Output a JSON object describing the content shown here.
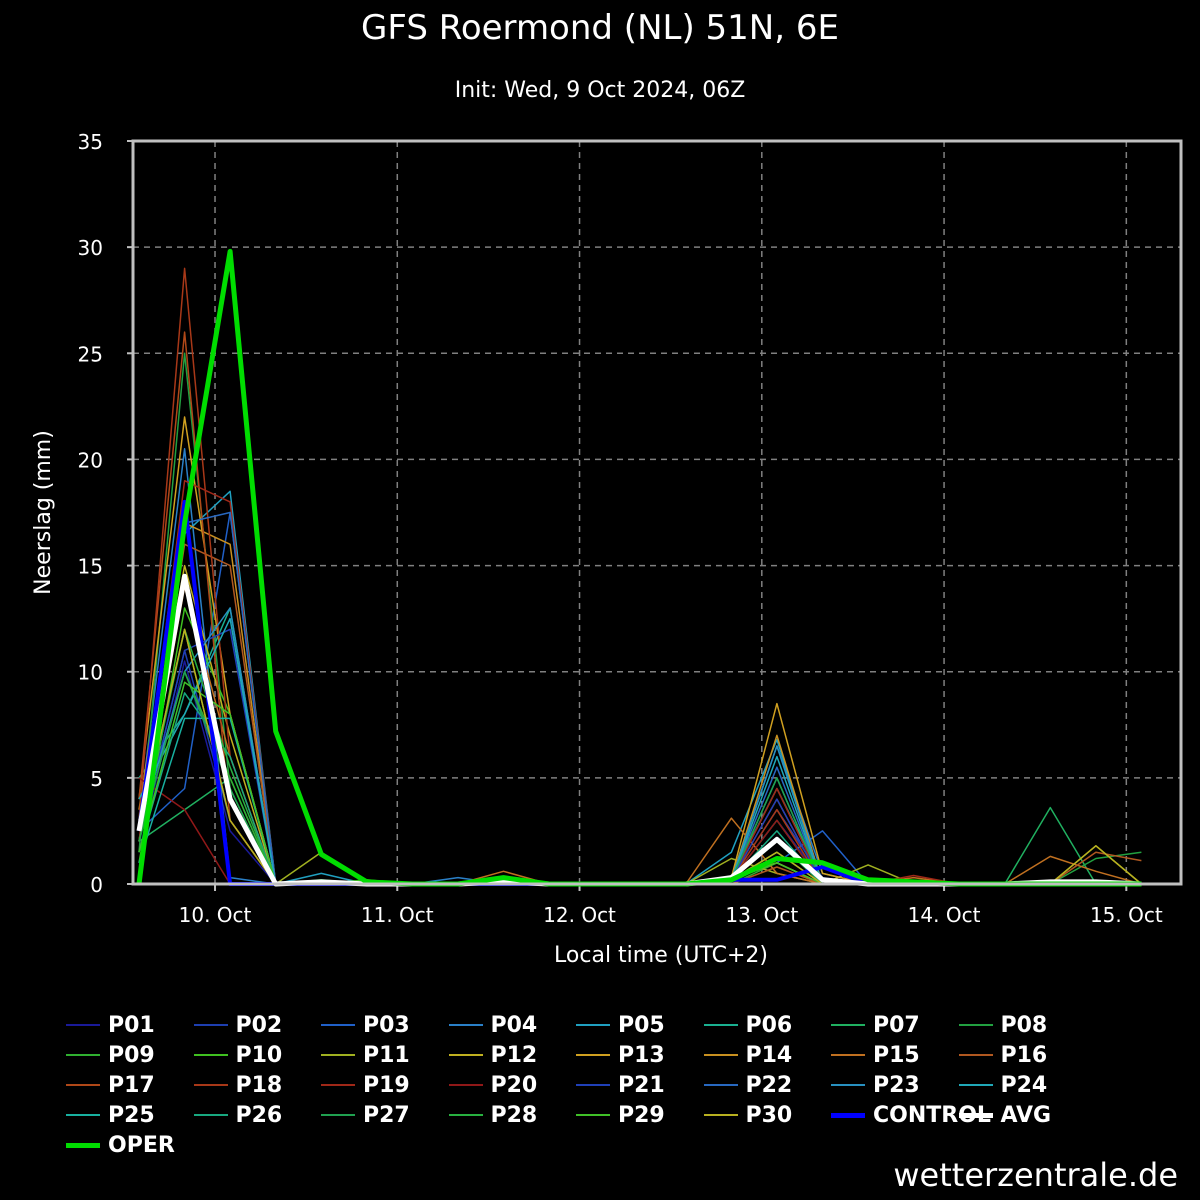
{
  "title": "GFS Roermond (NL) 51N, 6E",
  "subtitle": "Init: Wed, 9 Oct 2024, 06Z",
  "credit": "wetterzentrale.de",
  "colors": {
    "background": "#000000",
    "grid": "#808080",
    "axis": "#c0c0c0",
    "control": "#0000ff",
    "avg": "#ffffff",
    "oper": "#00dd00"
  },
  "chart_data": {
    "type": "line",
    "title": "GFS Roermond (NL) 51N, 6E",
    "subtitle": "Init: Wed, 9 Oct 2024, 06Z",
    "xlabel": "Local time (UTC+2)",
    "ylabel": "Neerslag (mm)",
    "xlim": [
      -0.45,
      5.3
    ],
    "ylim": [
      0,
      35
    ],
    "yticks": [
      0,
      5,
      10,
      15,
      20,
      25,
      30,
      35
    ],
    "xticks": [
      {
        "x": 0,
        "label": "10. Oct"
      },
      {
        "x": 1,
        "label": "11. Oct"
      },
      {
        "x": 2,
        "label": "12. Oct"
      },
      {
        "x": 3,
        "label": "13. Oct"
      },
      {
        "x": 4,
        "label": "14. Oct"
      },
      {
        "x": 5,
        "label": "15. Oct"
      }
    ],
    "x_unit": "days since 10 Oct 00:00 local",
    "x": [
      -0.417,
      -0.167,
      0.083,
      0.333,
      0.583,
      0.833,
      1.083,
      1.333,
      1.583,
      1.833,
      2.083,
      2.333,
      2.583,
      2.833,
      3.083,
      3.333,
      3.583,
      3.833,
      4.083,
      4.333,
      4.583,
      4.833,
      5.083
    ],
    "grid": true,
    "legend_placement": "bottom",
    "series": [
      {
        "name": "P01",
        "color": "#1a1a99",
        "width": 1.5,
        "values": [
          1.5,
          10.5,
          2.5,
          0.0,
          0.1,
          0.0,
          0.0,
          0.0,
          0.0,
          0.0,
          0.0,
          0.0,
          0.0,
          0.2,
          3.0,
          0.2,
          0.0,
          0.0,
          0.0,
          0.0,
          0.0,
          0.0,
          0.0
        ]
      },
      {
        "name": "P02",
        "color": "#1e3fb0",
        "width": 1.5,
        "values": [
          2.0,
          11.0,
          3.0,
          0.0,
          0.0,
          0.0,
          0.0,
          0.0,
          0.0,
          0.0,
          0.0,
          0.0,
          0.0,
          0.2,
          3.5,
          0.3,
          0.0,
          0.0,
          0.0,
          0.0,
          0.0,
          0.0,
          0.0
        ]
      },
      {
        "name": "P03",
        "color": "#2060c8",
        "width": 1.5,
        "values": [
          2.5,
          4.5,
          17.5,
          0.0,
          0.0,
          0.0,
          0.0,
          0.0,
          0.0,
          0.0,
          0.0,
          0.0,
          0.0,
          0.2,
          1.0,
          2.5,
          0.0,
          0.0,
          0.0,
          0.0,
          0.0,
          0.0,
          0.0
        ]
      },
      {
        "name": "P04",
        "color": "#2a80c8",
        "width": 1.5,
        "values": [
          3.0,
          20.5,
          0.3,
          0.0,
          0.1,
          0.0,
          0.0,
          0.3,
          0.0,
          0.0,
          0.0,
          0.0,
          0.0,
          0.3,
          6.5,
          0.5,
          0.0,
          0.0,
          0.0,
          0.0,
          0.0,
          0.0,
          0.0
        ]
      },
      {
        "name": "P05",
        "color": "#20a0c0",
        "width": 1.5,
        "values": [
          2.0,
          16.5,
          18.5,
          0.0,
          0.5,
          0.0,
          0.0,
          0.0,
          0.0,
          0.0,
          0.0,
          0.0,
          0.0,
          1.5,
          6.8,
          0.0,
          0.0,
          0.0,
          0.0,
          0.0,
          0.1,
          0.1,
          0.0
        ]
      },
      {
        "name": "P06",
        "color": "#1ab090",
        "width": 1.5,
        "values": [
          5.0,
          8.0,
          13.0,
          0.0,
          0.0,
          0.0,
          0.0,
          0.0,
          0.0,
          0.0,
          0.0,
          0.0,
          0.0,
          0.3,
          4.5,
          0.2,
          0.0,
          0.0,
          0.0,
          0.0,
          0.0,
          0.0,
          0.0
        ]
      },
      {
        "name": "P07",
        "color": "#20b060",
        "width": 1.5,
        "values": [
          2.0,
          3.5,
          5.0,
          0.0,
          0.0,
          0.0,
          0.0,
          0.0,
          0.0,
          0.0,
          0.0,
          0.0,
          0.0,
          0.2,
          2.0,
          0.0,
          0.0,
          0.0,
          0.0,
          0.0,
          3.6,
          0.0,
          0.0
        ]
      },
      {
        "name": "P08",
        "color": "#22a040",
        "width": 1.5,
        "values": [
          1.5,
          25.0,
          4.5,
          0.0,
          0.2,
          0.0,
          0.0,
          0.0,
          0.0,
          0.0,
          0.0,
          0.0,
          0.0,
          0.2,
          3.0,
          0.0,
          0.0,
          0.0,
          0.0,
          0.0,
          0.0,
          1.2,
          1.5
        ]
      },
      {
        "name": "P09",
        "color": "#30b030",
        "width": 1.5,
        "values": [
          2.0,
          10.0,
          5.0,
          0.0,
          0.0,
          0.0,
          0.0,
          0.0,
          0.0,
          0.0,
          0.0,
          0.0,
          0.0,
          0.0,
          1.0,
          0.0,
          0.0,
          0.0,
          0.0,
          0.0,
          0.0,
          0.0,
          0.0
        ]
      },
      {
        "name": "P10",
        "color": "#40c020",
        "width": 1.5,
        "values": [
          1.0,
          13.0,
          8.0,
          0.0,
          0.0,
          0.2,
          0.0,
          0.0,
          0.0,
          0.0,
          0.0,
          0.0,
          0.0,
          0.3,
          1.0,
          0.0,
          0.0,
          0.0,
          0.0,
          0.0,
          0.0,
          0.0,
          0.0
        ]
      },
      {
        "name": "P11",
        "color": "#a0b020",
        "width": 1.5,
        "values": [
          2.5,
          12.0,
          3.0,
          0.0,
          1.5,
          0.0,
          0.0,
          0.0,
          0.0,
          0.0,
          0.0,
          0.0,
          0.0,
          1.2,
          0.5,
          0.0,
          0.9,
          0.0,
          0.0,
          0.0,
          0.0,
          1.8,
          0.0
        ]
      },
      {
        "name": "P12",
        "color": "#c0b020",
        "width": 1.5,
        "values": [
          3.0,
          15.0,
          7.0,
          0.0,
          0.0,
          0.0,
          0.0,
          0.0,
          0.0,
          0.0,
          0.0,
          0.0,
          0.0,
          0.3,
          1.0,
          0.0,
          0.0,
          0.0,
          0.0,
          0.0,
          0.0,
          0.0,
          0.0
        ]
      },
      {
        "name": "P13",
        "color": "#d0a020",
        "width": 1.5,
        "values": [
          4.0,
          22.0,
          8.0,
          0.0,
          0.0,
          0.0,
          0.0,
          0.0,
          0.0,
          0.0,
          0.0,
          0.0,
          0.0,
          0.3,
          8.5,
          0.5,
          0.0,
          0.0,
          0.0,
          0.0,
          0.0,
          0.0,
          0.0
        ]
      },
      {
        "name": "P14",
        "color": "#c89020",
        "width": 1.5,
        "values": [
          3.5,
          17.0,
          16.0,
          0.0,
          0.0,
          0.0,
          0.0,
          0.0,
          0.0,
          0.0,
          0.0,
          0.0,
          0.0,
          0.2,
          7.0,
          0.0,
          0.0,
          0.0,
          0.0,
          0.0,
          0.0,
          0.0,
          0.0
        ]
      },
      {
        "name": "P15",
        "color": "#c07020",
        "width": 1.5,
        "values": [
          2.0,
          14.0,
          6.0,
          0.0,
          0.0,
          0.0,
          0.0,
          0.0,
          0.6,
          0.0,
          0.0,
          0.0,
          0.0,
          3.1,
          0.5,
          0.0,
          0.0,
          0.3,
          0.0,
          0.0,
          1.3,
          0.6,
          0.0
        ]
      },
      {
        "name": "P16",
        "color": "#b05820",
        "width": 1.5,
        "values": [
          2.0,
          16.0,
          15.0,
          0.0,
          0.0,
          0.0,
          0.0,
          0.0,
          0.0,
          0.0,
          0.0,
          0.0,
          0.0,
          0.0,
          0.8,
          0.0,
          0.0,
          0.0,
          0.0,
          0.0,
          0.0,
          1.5,
          1.1
        ]
      },
      {
        "name": "P17",
        "color": "#b04818",
        "width": 1.5,
        "values": [
          4.0,
          26.0,
          3.0,
          0.0,
          0.0,
          0.0,
          0.0,
          0.0,
          0.0,
          0.0,
          0.0,
          0.0,
          0.0,
          0.2,
          4.0,
          0.0,
          0.0,
          0.0,
          0.0,
          0.0,
          0.0,
          0.0,
          0.0
        ]
      },
      {
        "name": "P18",
        "color": "#a83818",
        "width": 1.5,
        "values": [
          3.0,
          29.0,
          6.0,
          0.0,
          0.0,
          0.0,
          0.0,
          0.0,
          0.0,
          0.0,
          0.0,
          0.0,
          0.0,
          0.2,
          3.5,
          0.0,
          0.0,
          0.0,
          0.0,
          0.0,
          0.0,
          0.0,
          0.0
        ]
      },
      {
        "name": "P19",
        "color": "#a02818",
        "width": 1.5,
        "values": [
          2.0,
          19.0,
          18.0,
          0.0,
          0.0,
          0.0,
          0.0,
          0.0,
          0.0,
          0.0,
          0.0,
          0.0,
          0.0,
          0.2,
          4.5,
          0.0,
          0.0,
          0.4,
          0.0,
          0.0,
          0.0,
          0.0,
          0.0
        ]
      },
      {
        "name": "P20",
        "color": "#901818",
        "width": 1.5,
        "values": [
          5.0,
          3.5,
          0.0,
          0.0,
          0.0,
          0.0,
          0.0,
          0.0,
          0.0,
          0.0,
          0.0,
          0.0,
          0.0,
          0.2,
          3.0,
          0.0,
          0.0,
          0.0,
          0.0,
          0.0,
          0.0,
          0.0,
          0.0
        ]
      },
      {
        "name": "P21",
        "color": "#2040b8",
        "width": 1.5,
        "values": [
          2.0,
          11.0,
          12.0,
          0.0,
          0.0,
          0.0,
          0.0,
          0.0,
          0.0,
          0.0,
          0.0,
          0.0,
          0.0,
          0.2,
          4.0,
          0.0,
          0.0,
          0.0,
          0.0,
          0.0,
          0.0,
          0.0,
          0.0
        ]
      },
      {
        "name": "P22",
        "color": "#2868c0",
        "width": 1.5,
        "values": [
          3.0,
          17.0,
          17.5,
          0.0,
          0.0,
          0.0,
          0.0,
          0.0,
          0.0,
          0.0,
          0.0,
          0.0,
          0.0,
          0.2,
          5.5,
          0.0,
          0.0,
          0.0,
          0.0,
          0.0,
          0.0,
          0.0,
          0.0
        ]
      },
      {
        "name": "P23",
        "color": "#2890c0",
        "width": 1.5,
        "values": [
          2.5,
          10.0,
          13.0,
          0.0,
          0.0,
          0.0,
          0.0,
          0.0,
          0.0,
          0.0,
          0.0,
          0.0,
          0.0,
          0.2,
          6.5,
          0.0,
          0.0,
          0.0,
          0.0,
          0.0,
          0.0,
          0.0,
          0.0
        ]
      },
      {
        "name": "P24",
        "color": "#20a8b8",
        "width": 1.5,
        "values": [
          4.0,
          8.0,
          12.5,
          0.0,
          0.0,
          0.0,
          0.0,
          0.0,
          0.0,
          0.0,
          0.0,
          0.0,
          0.0,
          0.2,
          6.0,
          0.0,
          0.0,
          0.0,
          0.0,
          0.0,
          0.0,
          0.0,
          0.0
        ]
      },
      {
        "name": "P25",
        "color": "#18b0a0",
        "width": 1.5,
        "values": [
          1.0,
          7.8,
          7.8,
          0.0,
          0.0,
          0.0,
          0.0,
          0.0,
          0.0,
          0.0,
          0.0,
          0.0,
          0.0,
          0.2,
          5.0,
          0.0,
          0.0,
          0.0,
          0.0,
          0.0,
          0.0,
          0.0,
          0.0
        ]
      },
      {
        "name": "P26",
        "color": "#18a880",
        "width": 1.5,
        "values": [
          1.5,
          9.0,
          6.0,
          0.0,
          0.0,
          0.0,
          0.0,
          0.0,
          0.0,
          0.0,
          0.0,
          0.0,
          0.0,
          0.2,
          2.5,
          0.0,
          0.0,
          0.0,
          0.0,
          0.0,
          0.0,
          0.0,
          0.0
        ]
      },
      {
        "name": "P27",
        "color": "#20a050",
        "width": 1.5,
        "values": [
          2.0,
          10.0,
          4.5,
          0.0,
          0.0,
          0.0,
          0.0,
          0.0,
          0.0,
          0.0,
          0.0,
          0.0,
          0.0,
          0.2,
          5.0,
          0.0,
          0.0,
          0.0,
          0.0,
          0.0,
          0.0,
          0.0,
          0.0
        ]
      },
      {
        "name": "P28",
        "color": "#28b040",
        "width": 1.5,
        "values": [
          2.0,
          12.0,
          5.5,
          0.0,
          0.0,
          0.0,
          0.0,
          0.0,
          0.0,
          0.0,
          0.0,
          0.0,
          0.0,
          0.2,
          1.5,
          0.0,
          0.0,
          0.0,
          0.0,
          0.0,
          0.0,
          0.0,
          0.0
        ]
      },
      {
        "name": "P29",
        "color": "#40c028",
        "width": 1.5,
        "values": [
          1.5,
          9.5,
          8.0,
          0.0,
          0.0,
          0.0,
          0.0,
          0.0,
          0.0,
          0.0,
          0.0,
          0.0,
          0.0,
          0.2,
          1.0,
          0.0,
          0.0,
          0.0,
          0.0,
          0.0,
          0.0,
          0.0,
          0.0
        ]
      },
      {
        "name": "P30",
        "color": "#b8b020",
        "width": 1.5,
        "values": [
          2.5,
          12.0,
          3.0,
          0.0,
          0.0,
          0.0,
          0.0,
          0.0,
          0.0,
          0.0,
          0.0,
          0.0,
          0.0,
          0.2,
          1.5,
          0.0,
          0.0,
          0.0,
          0.0,
          0.0,
          0.0,
          1.8,
          0.0
        ]
      },
      {
        "name": "CONTROL",
        "color": "#0000ff",
        "width": 4,
        "values": [
          2.5,
          18.0,
          0.0,
          0.0,
          0.0,
          0.0,
          0.0,
          0.0,
          0.0,
          0.0,
          0.0,
          0.0,
          0.0,
          0.2,
          0.2,
          0.8,
          0.0,
          0.0,
          0.0,
          0.0,
          0.0,
          0.0,
          0.0
        ]
      },
      {
        "name": "AVG",
        "color": "#ffffff",
        "width": 5,
        "values": [
          2.5,
          14.5,
          4.0,
          0.0,
          0.1,
          0.0,
          0.0,
          0.0,
          0.1,
          0.0,
          0.0,
          0.0,
          0.0,
          0.3,
          2.1,
          0.2,
          0.0,
          0.0,
          0.0,
          0.0,
          0.1,
          0.1,
          0.0
        ]
      },
      {
        "name": "OPER",
        "color": "#00dd00",
        "width": 5,
        "values": [
          0.0,
          17.0,
          29.8,
          7.2,
          1.4,
          0.1,
          0.0,
          0.0,
          0.3,
          0.0,
          0.0,
          0.0,
          0.0,
          0.2,
          1.2,
          1.0,
          0.2,
          0.1,
          0.0,
          0.0,
          0.0,
          0.0,
          0.0
        ]
      }
    ]
  }
}
